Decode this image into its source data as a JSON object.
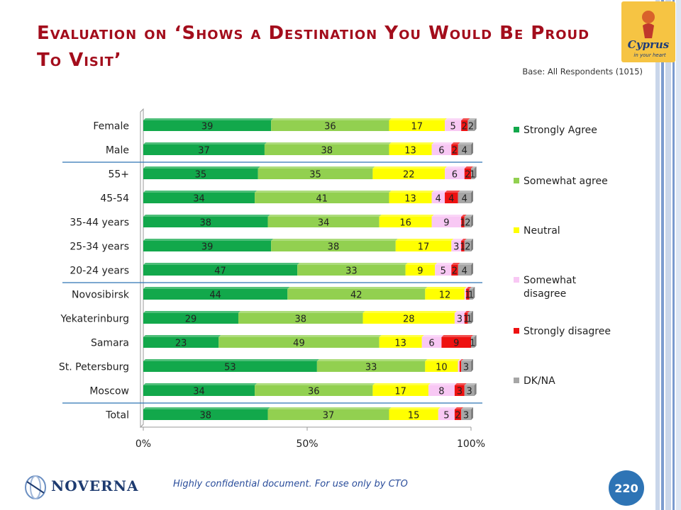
{
  "title": "Evaluation on ‘Shows a Destination You Would Be Proud To Visit’",
  "base_note": "Base: All Respondents (1015)",
  "footer": "Highly confidential document. For use only by CTO",
  "page_number": "220",
  "logos": {
    "cyprus": "Cyprus in your heart",
    "noverna": "NOVERNA"
  },
  "colors": {
    "title": "#a30d1c",
    "strongly_agree": "#12a84b",
    "somewhat_agree": "#92d050",
    "neutral": "#ffff00",
    "somewhat_disagree": "#f8c8f4",
    "strongly_disagree": "#ee1111",
    "dk_na": "#a6a6a6",
    "badge": "#2e74b5"
  },
  "chart_data": {
    "type": "bar",
    "orientation": "horizontal",
    "stacked": true,
    "categories": [
      "Female",
      "Male",
      "55+",
      "45-54",
      "35-44 years",
      "25-34 years",
      "20-24 years",
      "Novosibirsk",
      "Yekaterinburg",
      "Samara",
      "St. Petersburg",
      "Moscow",
      "Total"
    ],
    "series": [
      {
        "name": "Strongly Agree",
        "values": [
          39,
          37,
          35,
          34,
          38,
          39,
          47,
          44,
          29,
          23,
          53,
          34,
          38
        ],
        "labels": [
          "39",
          "37",
          "35",
          "34",
          "38",
          "39",
          "47",
          "44",
          "29",
          "23",
          "53",
          "34",
          "38"
        ]
      },
      {
        "name": "Somewhat agree",
        "values": [
          36,
          38,
          35,
          41,
          34,
          38,
          33,
          42,
          38,
          49,
          33,
          36,
          37
        ],
        "labels": [
          "36",
          "38",
          "35",
          "41",
          "34",
          "38",
          "33",
          "42",
          "38",
          "49",
          "33",
          "36",
          "37"
        ]
      },
      {
        "name": "Neutral",
        "values": [
          17,
          13,
          22,
          13,
          16,
          17,
          9,
          12,
          28,
          13,
          10,
          17,
          15
        ],
        "labels": [
          "17",
          "13",
          "22",
          "13",
          "16",
          "17",
          "9",
          "12",
          "28",
          "13",
          "10",
          "17",
          "15"
        ]
      },
      {
        "name": "Somewhat disagree",
        "values": [
          5,
          6,
          6,
          4,
          9,
          3,
          5,
          0.5,
          3,
          6,
          0.5,
          8,
          5
        ],
        "labels": [
          "5",
          "6",
          "6",
          "4",
          "9",
          "3",
          "5",
          "",
          "3",
          "6",
          "",
          "8",
          "5"
        ]
      },
      {
        "name": "Strongly disagree",
        "values": [
          2,
          2,
          2,
          4,
          1,
          1,
          2,
          1,
          1,
          9,
          0.5,
          3,
          2
        ],
        "labels": [
          "2",
          "2",
          "2",
          "4",
          "1",
          "1",
          "2",
          "1",
          "1",
          "9",
          "",
          "3",
          "2"
        ]
      },
      {
        "name": "DK/NA",
        "values": [
          2,
          4,
          1,
          4,
          2,
          2,
          4,
          1,
          1,
          1,
          3,
          3,
          3
        ],
        "labels": [
          "2",
          "4",
          "1",
          "4",
          "2",
          "2",
          "4",
          "1",
          "1",
          "1",
          "3",
          "3",
          "3"
        ]
      }
    ],
    "xaxis_ticks": [
      "0%",
      "50%",
      "100%"
    ],
    "xlim": [
      0,
      100
    ],
    "separators_after": [
      "Male",
      "20-24 years",
      "Moscow"
    ],
    "legend_position": "right",
    "grid": false
  }
}
